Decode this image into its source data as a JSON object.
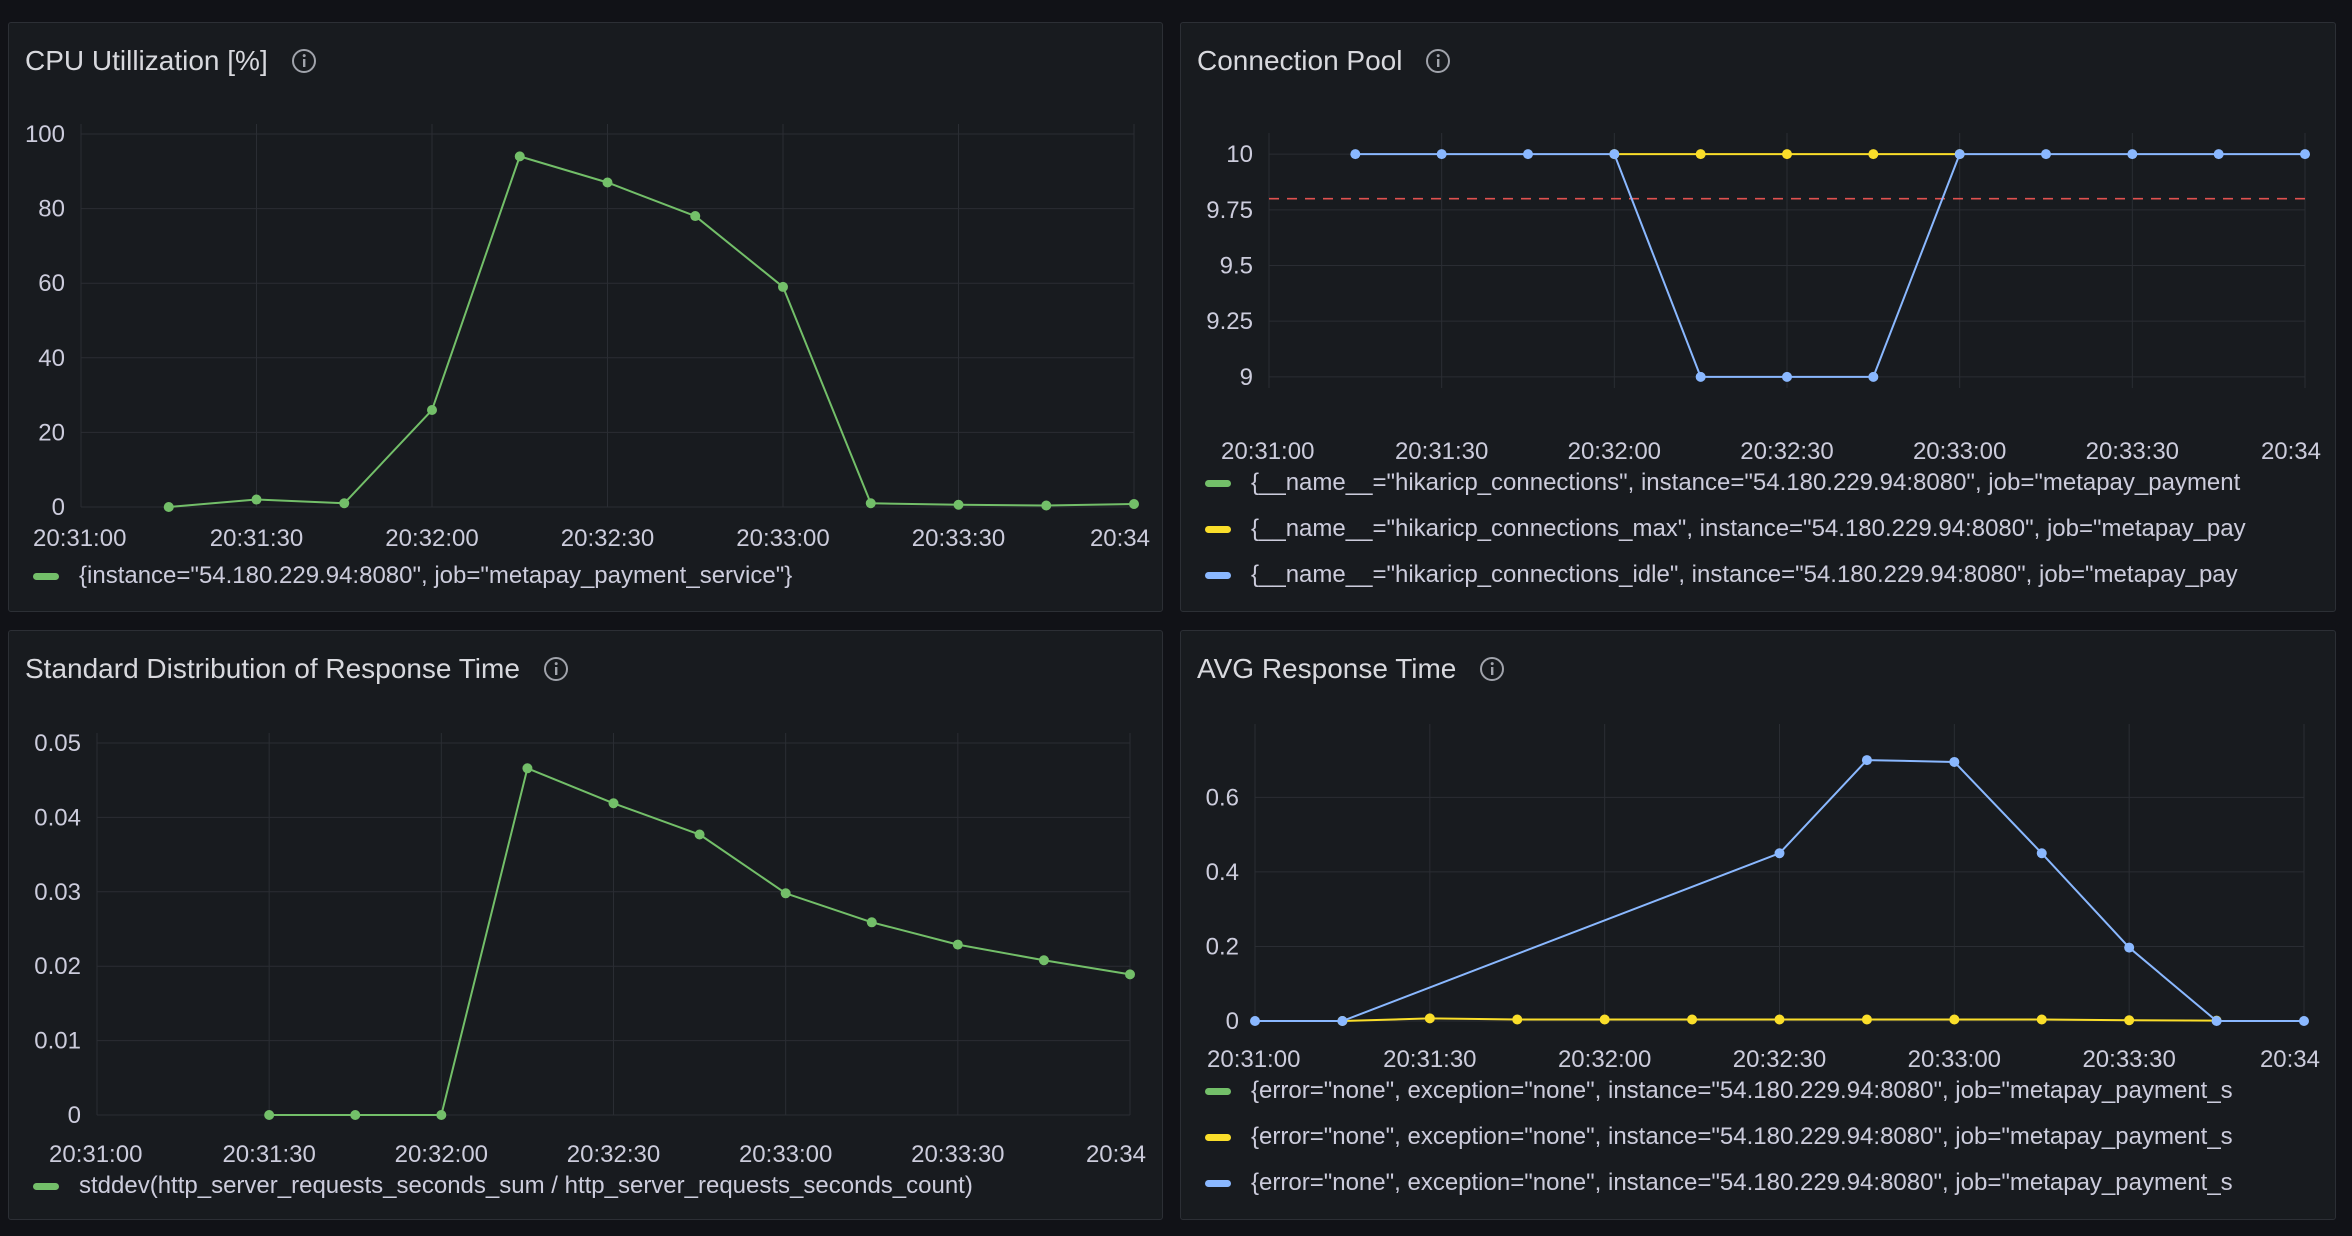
{
  "panels": [
    {
      "id": "cpu",
      "title": "CPU Utillization [%]",
      "chart_data": {
        "type": "line",
        "title": "CPU Utillization [%]",
        "x_ticks": [
          "20:31:00",
          "20:31:30",
          "20:32:00",
          "20:32:30",
          "20:33:00",
          "20:33:30",
          "20:34"
        ],
        "y_ticks": [
          "0",
          "20",
          "40",
          "60",
          "80",
          "100"
        ],
        "ylim": [
          0,
          100
        ],
        "series": [
          {
            "name": "{instance=\"54.180.229.94:8080\", job=\"metapay_payment_service\"}",
            "color": "#73bf69",
            "x": [
              "20:31:15",
              "20:31:30",
              "20:31:45",
              "20:32:00",
              "20:32:15",
              "20:32:30",
              "20:32:45",
              "20:33:00",
              "20:33:15",
              "20:33:30",
              "20:33:45",
              "20:34:00"
            ],
            "values": [
              0,
              2,
              1,
              26,
              94,
              87,
              78,
              59,
              1,
              0.6,
              0.4,
              0.8
            ]
          }
        ]
      }
    },
    {
      "id": "pool",
      "title": "Connection Pool",
      "chart_data": {
        "type": "line",
        "title": "Connection Pool",
        "x_ticks": [
          "20:31:00",
          "20:31:30",
          "20:32:00",
          "20:32:30",
          "20:33:00",
          "20:33:30",
          "20:34"
        ],
        "y_ticks": [
          "9",
          "9.25",
          "9.5",
          "9.75",
          "10"
        ],
        "ylim": [
          8.95,
          10.05
        ],
        "threshold": {
          "value": 9.8,
          "color": "#e0514f"
        },
        "series": [
          {
            "name": "{__name__=\"hikaricp_connections\", instance=\"54.180.229.94:8080\", job=\"metapay_payment",
            "color": "#73bf69",
            "x": [],
            "values": []
          },
          {
            "name": "{__name__=\"hikaricp_connections_max\", instance=\"54.180.229.94:8080\", job=\"metapay_pay",
            "color": "#fade2a",
            "x": [
              "20:32:00",
              "20:32:15",
              "20:32:30",
              "20:32:45",
              "20:33:00"
            ],
            "values": [
              10,
              10,
              10,
              10,
              10
            ]
          },
          {
            "name": "{__name__=\"hikaricp_connections_idle\", instance=\"54.180.229.94:8080\", job=\"metapay_pay",
            "color": "#8ab8ff",
            "x": [
              "20:31:15",
              "20:31:30",
              "20:31:45",
              "20:32:00",
              "20:32:15",
              "20:32:30",
              "20:32:45",
              "20:33:00",
              "20:33:15",
              "20:33:30",
              "20:33:45",
              "20:34:00"
            ],
            "values": [
              10,
              10,
              10,
              10,
              9,
              9,
              9,
              10,
              10,
              10,
              10,
              10
            ]
          }
        ]
      }
    },
    {
      "id": "stddev",
      "title": "Standard Distribution of Response Time",
      "chart_data": {
        "type": "line",
        "title": "Standard Distribution of Response Time",
        "x_ticks": [
          "20:31:00",
          "20:31:30",
          "20:32:00",
          "20:32:30",
          "20:33:00",
          "20:33:30",
          "20:34"
        ],
        "y_ticks": [
          "0",
          "0.01",
          "0.02",
          "0.03",
          "0.04",
          "0.05"
        ],
        "ylim": [
          0,
          0.05
        ],
        "series": [
          {
            "name": "stddev(http_server_requests_seconds_sum / http_server_requests_seconds_count)",
            "color": "#73bf69",
            "x": [
              "20:31:30",
              "20:31:45",
              "20:32:00",
              "20:32:15",
              "20:32:30",
              "20:32:45",
              "20:33:00",
              "20:33:15",
              "20:33:30",
              "20:33:45",
              "20:34:00"
            ],
            "values": [
              0,
              0,
              0,
              0.0466,
              0.0419,
              0.0377,
              0.0298,
              0.0259,
              0.0229,
              0.0208,
              0.0189
            ]
          }
        ]
      }
    },
    {
      "id": "avg",
      "title": "AVG Response Time",
      "chart_data": {
        "type": "line",
        "title": "AVG Response Time",
        "x_ticks": [
          "20:31:00",
          "20:31:30",
          "20:32:00",
          "20:32:30",
          "20:33:00",
          "20:33:30",
          "20:34"
        ],
        "y_ticks": [
          "0",
          "0.2",
          "0.4",
          "0.6"
        ],
        "ylim": [
          0,
          0.77
        ],
        "series": [
          {
            "name": "{error=\"none\", exception=\"none\", instance=\"54.180.229.94:8080\", job=\"metapay_payment_s",
            "color": "#73bf69",
            "x": [],
            "values": []
          },
          {
            "name": "{error=\"none\", exception=\"none\", instance=\"54.180.229.94:8080\", job=\"metapay_payment_s",
            "color": "#fade2a",
            "x": [
              "20:31:15",
              "20:31:30",
              "20:31:45",
              "20:32:00",
              "20:32:15",
              "20:32:30",
              "20:32:45",
              "20:33:00",
              "20:33:15",
              "20:33:30",
              "20:33:45"
            ],
            "values": [
              0,
              0.007,
              0.004,
              0.004,
              0.004,
              0.004,
              0.004,
              0.004,
              0.004,
              0.002,
              0.001
            ]
          },
          {
            "name": "{error=\"none\", exception=\"none\", instance=\"54.180.229.94:8080\", job=\"metapay_payment_s",
            "color": "#8ab8ff",
            "x": [
              "20:31:00",
              "20:31:15",
              "20:32:30",
              "20:32:45",
              "20:33:00",
              "20:33:15",
              "20:33:30",
              "20:33:45",
              "20:34:00"
            ],
            "values": [
              0,
              0,
              0.45,
              0.7,
              0.695,
              0.45,
              0.197,
              0,
              0
            ]
          }
        ]
      }
    }
  ]
}
